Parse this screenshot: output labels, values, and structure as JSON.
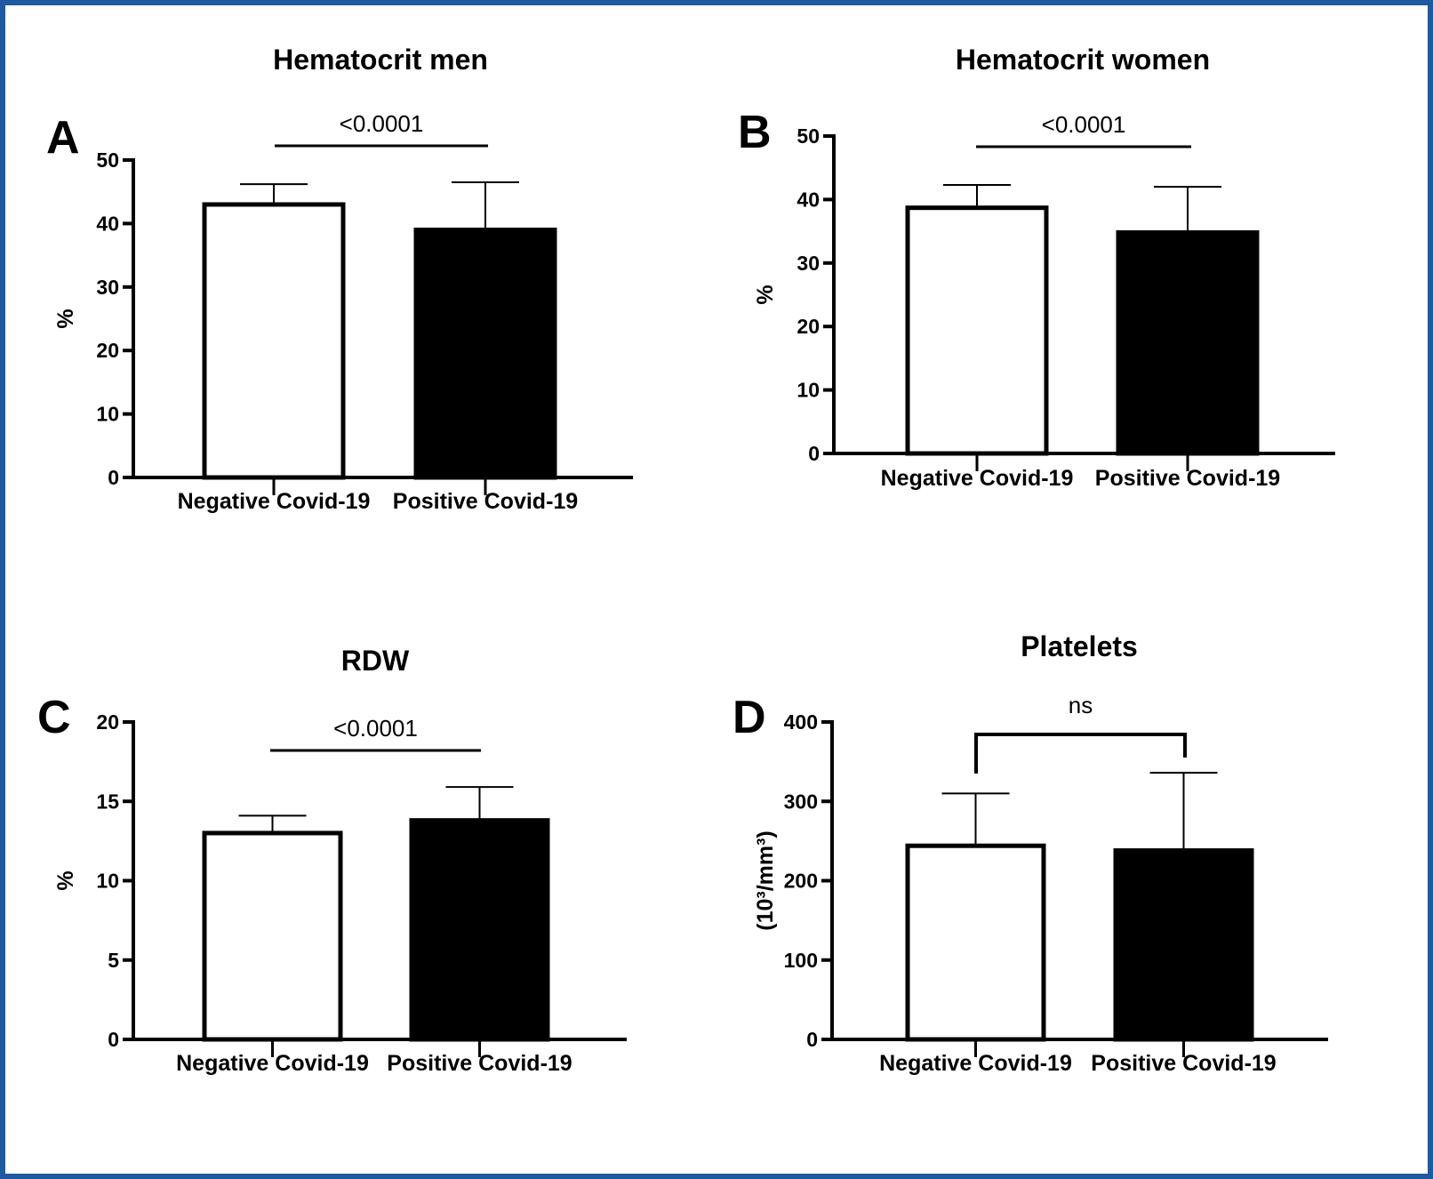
{
  "figure": {
    "border_color": "#1f5aa0",
    "bar_colors": [
      "#ffffff",
      "#000000"
    ],
    "bar_stroke": "#000000"
  },
  "chart_data": [
    {
      "type": "bar",
      "panel_label": "A",
      "title": "Hematocrit men",
      "ylabel": "%",
      "categories": [
        "Negative Covid-19",
        "Positive Covid-19"
      ],
      "values": [
        43,
        39
      ],
      "error_upper": [
        46.2,
        46.5
      ],
      "ylim": [
        0,
        50
      ],
      "yticks": [
        0,
        10,
        20,
        30,
        40,
        50
      ],
      "significance": {
        "text": "<0.0001",
        "style": "line"
      }
    },
    {
      "type": "bar",
      "panel_label": "B",
      "title": "Hematocrit women",
      "ylabel": "%",
      "categories": [
        "Negative Covid-19",
        "Positive Covid-19"
      ],
      "values": [
        38.7,
        34.8
      ],
      "error_upper": [
        42.3,
        42.0
      ],
      "ylim": [
        0,
        50
      ],
      "yticks": [
        0,
        10,
        20,
        30,
        40,
        50
      ],
      "significance": {
        "text": "<0.0001",
        "style": "line"
      }
    },
    {
      "type": "bar",
      "panel_label": "C",
      "title": "RDW",
      "ylabel": "%",
      "categories": [
        "Negative Covid-19",
        "Positive Covid-19"
      ],
      "values": [
        13.0,
        13.8
      ],
      "error_upper": [
        14.1,
        15.9
      ],
      "ylim": [
        0,
        20
      ],
      "yticks": [
        0,
        5,
        10,
        15,
        20
      ],
      "significance": {
        "text": "<0.0001",
        "style": "line"
      }
    },
    {
      "type": "bar",
      "panel_label": "D",
      "title": "Platelets",
      "ylabel": "(10³/mm³)",
      "categories": [
        "Negative Covid-19",
        "Positive Covid-19"
      ],
      "values": [
        244,
        238
      ],
      "error_upper": [
        310,
        336
      ],
      "ylim": [
        0,
        400
      ],
      "yticks": [
        0,
        100,
        200,
        300,
        400
      ],
      "significance": {
        "text": "ns",
        "style": "bracket"
      }
    }
  ]
}
